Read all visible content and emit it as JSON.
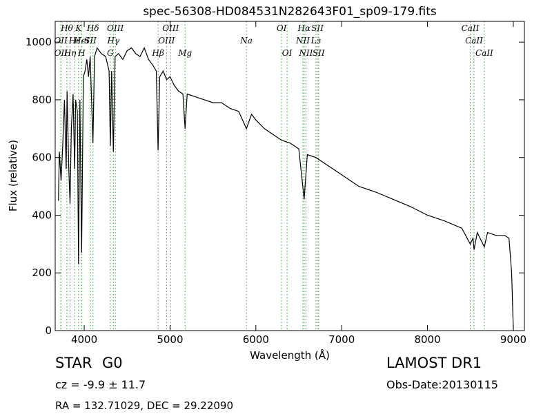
{
  "chart_data": {
    "type": "line",
    "title": "spec-56308-HD084531N282643F01_sp09-179.fits",
    "x_label": "Wavelength (Å)",
    "y_label": "Flux (relative)",
    "xlim": [
      3662,
      9129
    ],
    "ylim": [
      0,
      1072
    ],
    "xticks": [
      4000,
      5000,
      6000,
      7000,
      8000,
      9000
    ],
    "yticks": [
      0,
      200,
      400,
      600,
      800,
      1000
    ],
    "x": [
      3700,
      3710,
      3730,
      3750,
      3770,
      3790,
      3800,
      3820,
      3835,
      3850,
      3870,
      3889,
      3900,
      3920,
      3934,
      3950,
      3970,
      3990,
      4010,
      4030,
      4050,
      4070,
      4102,
      4120,
      4150,
      4200,
      4250,
      4290,
      4304,
      4320,
      4340,
      4360,
      4400,
      4450,
      4500,
      4550,
      4600,
      4650,
      4700,
      4750,
      4800,
      4840,
      4861,
      4880,
      4920,
      4960,
      5000,
      5050,
      5100,
      5150,
      5175,
      5200,
      5300,
      5400,
      5500,
      5600,
      5700,
      5800,
      5890,
      5950,
      6000,
      6100,
      6200,
      6300,
      6400,
      6500,
      6563,
      6600,
      6700,
      6800,
      6900,
      7000,
      7200,
      7400,
      7600,
      7800,
      8000,
      8200,
      8400,
      8498,
      8530,
      8542,
      8580,
      8662,
      8700,
      8800,
      8900,
      8950,
      8980,
      9000
    ],
    "series": [
      {
        "color": "#000000",
        "values": [
          450,
          620,
          520,
          640,
          800,
          560,
          830,
          560,
          440,
          700,
          820,
          560,
          800,
          760,
          230,
          800,
          270,
          880,
          900,
          940,
          880,
          950,
          650,
          950,
          980,
          960,
          950,
          900,
          640,
          900,
          620,
          950,
          960,
          940,
          970,
          980,
          960,
          950,
          980,
          940,
          920,
          900,
          625,
          880,
          900,
          870,
          880,
          850,
          830,
          820,
          700,
          820,
          810,
          800,
          790,
          790,
          770,
          760,
          700,
          750,
          730,
          700,
          680,
          660,
          650,
          630,
          455,
          610,
          600,
          580,
          560,
          540,
          500,
          480,
          455,
          430,
          400,
          380,
          355,
          300,
          320,
          280,
          340,
          290,
          340,
          330,
          330,
          320,
          200,
          0
        ]
      }
    ],
    "line_color": "#2ca02c",
    "spectral_lines": [
      [
        {
          "label": "Hθ",
          "x": 3798
        },
        {
          "label": "K",
          "x": 3934
        },
        {
          "label": "Hδ",
          "x": 4102
        },
        {
          "label": "OIII",
          "x": 4363
        },
        {
          "label": "OIII",
          "x": 5007
        },
        {
          "label": "OI",
          "x": 6300
        },
        {
          "label": "Hα",
          "x": 6563
        },
        {
          "label": "SII",
          "x": 6717
        },
        {
          "label": "CaII",
          "x": 8498
        }
      ],
      [
        {
          "label": "OII",
          "x": 3727
        },
        {
          "label": "Hε",
          "x": 3889
        },
        {
          "label": "HeI",
          "x": 3970
        },
        {
          "label": "SII",
          "x": 4072
        },
        {
          "label": "Hγ",
          "x": 4340
        },
        {
          "label": "OIII",
          "x": 4959
        },
        {
          "label": "Na",
          "x": 5890
        },
        {
          "label": "NII",
          "x": 6548
        },
        {
          "label": "Lз",
          "x": 6700
        },
        {
          "label": "CaII",
          "x": 8542
        }
      ],
      [
        {
          "label": "OII",
          "x": 3729
        },
        {
          "label": "Hη",
          "x": 3835
        },
        {
          "label": "H",
          "x": 3970
        },
        {
          "label": "G",
          "x": 4304
        },
        {
          "label": "Hβ",
          "x": 4861
        },
        {
          "label": "Mg",
          "x": 5175
        },
        {
          "label": "OI",
          "x": 6364
        },
        {
          "label": "NII",
          "x": 6583
        },
        {
          "label": "SII",
          "x": 6731
        },
        {
          "label": "CaII",
          "x": 8662
        }
      ]
    ]
  },
  "info": {
    "object": "STAR",
    "subclass": "G0",
    "survey": "LAMOST DR1",
    "cz": "cz = -9.9  ± 11.7",
    "obs_date": "Obs-Date:20130115",
    "coords": "RA = 132.71029, DEC = 29.22090"
  }
}
